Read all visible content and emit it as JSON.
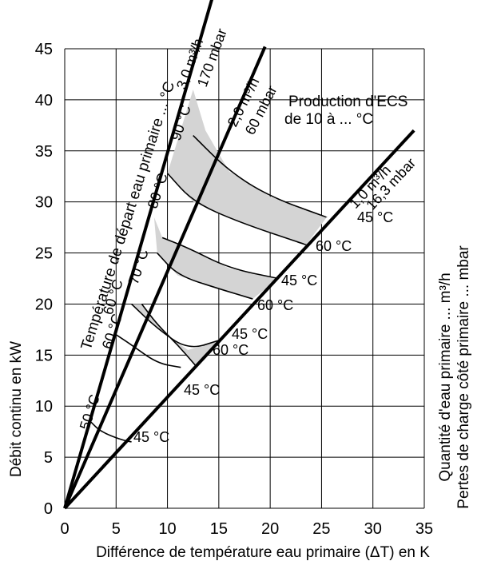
{
  "chart_data": {
    "type": "line",
    "xlabel": "Différence de température eau primaire (ΔT) en K",
    "ylabel": "Débit continu en kW",
    "right_label_1": "Quantité d'eau primaire ... m³/h",
    "right_label_2": "Pertes de charge côté primaire ... mbar",
    "left_diag_label": "Température de départ eau primaire ... °C",
    "title_line1": "Production d'ECS",
    "title_line2": "de 10 à ... °C",
    "xlim": [
      0,
      35
    ],
    "ylim": [
      0,
      45
    ],
    "grid": true,
    "x_ticks": [
      "0",
      "5",
      "10",
      "15",
      "20",
      "25",
      "30",
      "35"
    ],
    "y_ticks": [
      "0",
      "5",
      "10",
      "15",
      "20",
      "25",
      "30",
      "35",
      "40",
      "45"
    ],
    "series": [
      {
        "name": "3,0 m³/h 170 mbar",
        "flow": "3,0 m³/h",
        "pressure": "170 mbar",
        "x": [
          0,
          15
        ],
        "y": [
          0,
          52.2
        ]
      },
      {
        "name": "2,0 m³/h 60 mbar",
        "flow": "2,0 m³/h",
        "pressure": "60 mbar",
        "x": [
          0,
          19.5
        ],
        "y": [
          0,
          45.2
        ]
      },
      {
        "name": "1,0 m³/h 16,3 mbar",
        "flow": "1,0 m³/h",
        "pressure": "16,3 mbar",
        "x": [
          0,
          34
        ],
        "y": [
          0,
          37
        ]
      }
    ],
    "supply_temp_labels": [
      "50 °C",
      "60 °C",
      "70 °C",
      "80 °C",
      "90 °C"
    ],
    "isotherms": [
      {
        "flow_temp": "50 °C",
        "dhw_temp": "45 °C",
        "points": [
          [
            2.5,
            8.5
          ],
          [
            3.5,
            7.5
          ],
          [
            5.5,
            6.7
          ],
          [
            6.5,
            6.5
          ]
        ],
        "label": "45 °C"
      },
      {
        "flow_temp": "60 °C",
        "dhw_temp": "45 °C",
        "points": [
          [
            5,
            17
          ],
          [
            6.5,
            16
          ],
          [
            9,
            14.2
          ],
          [
            11.3,
            13.8
          ]
        ],
        "label": "45 °C"
      },
      {
        "flow_temp": "60 °C",
        "dhw_temp": "60 °C",
        "points": [
          [
            7.5,
            20
          ],
          [
            9,
            18
          ],
          [
            11,
            16
          ],
          [
            12.8,
            13.9
          ]
        ],
        "label": "60 °C"
      },
      {
        "flow_temp": "70 °C",
        "dhw_temp": "45 °C",
        "points": [
          [
            6.5,
            20
          ],
          [
            9,
            17.6
          ],
          [
            12,
            15.5
          ],
          [
            15.2,
            16.5
          ]
        ],
        "label": "45 °C"
      },
      {
        "flow_temp": "70 °C",
        "dhw_temp": "60 °C",
        "points": [
          [
            9,
            25
          ],
          [
            11,
            22.8
          ],
          [
            15,
            21.5
          ],
          [
            18.3,
            20.5
          ]
        ],
        "label": "60 °C"
      },
      {
        "flow_temp": "80 °C",
        "dhw_temp": "45 °C",
        "points": [
          [
            9.5,
            26.5
          ],
          [
            12,
            25.5
          ],
          [
            16,
            23.5
          ],
          [
            20.8,
            22.5
          ]
        ],
        "label": "45 °C"
      },
      {
        "flow_temp": "80 °C",
        "dhw_temp": "60 °C",
        "points": [
          [
            10,
            32.8
          ],
          [
            12.5,
            30
          ],
          [
            17,
            28
          ],
          [
            23.5,
            25.8
          ]
        ],
        "label": "60 °C"
      },
      {
        "flow_temp": "90 °C",
        "dhw_temp": "45 °C",
        "points": [
          [
            12.5,
            36.5
          ],
          [
            16,
            33
          ],
          [
            20,
            30.5
          ],
          [
            25.5,
            28.5
          ]
        ],
        "label": "45 °C"
      }
    ],
    "bands": [
      {
        "upper": [
          [
            12.5,
            41
          ],
          [
            13.6,
            37
          ],
          [
            12.5,
            36.5
          ],
          [
            16,
            33
          ],
          [
            20,
            30.5
          ],
          [
            25.5,
            28.5
          ]
        ],
        "lower": [
          [
            23.5,
            25.8
          ],
          [
            17,
            28
          ],
          [
            12.5,
            30
          ],
          [
            10,
            32.8
          ]
        ],
        "close": [
          [
            12.5,
            41
          ]
        ]
      },
      {
        "poly": [
          [
            8.7,
            28.5
          ],
          [
            9.5,
            26.5
          ],
          [
            12,
            25.5
          ],
          [
            16,
            23.5
          ],
          [
            20.8,
            22.5
          ],
          [
            18.3,
            20.5
          ],
          [
            15,
            21.5
          ],
          [
            11,
            22.8
          ],
          [
            9,
            25
          ],
          [
            8.7,
            28.5
          ]
        ]
      },
      {
        "poly": [
          [
            6.5,
            20
          ],
          [
            9,
            17.6
          ],
          [
            12,
            15.5
          ],
          [
            15.2,
            16.5
          ],
          [
            12.8,
            13.9
          ],
          [
            11,
            16
          ],
          [
            9,
            18
          ],
          [
            7.5,
            20
          ]
        ]
      }
    ]
  }
}
